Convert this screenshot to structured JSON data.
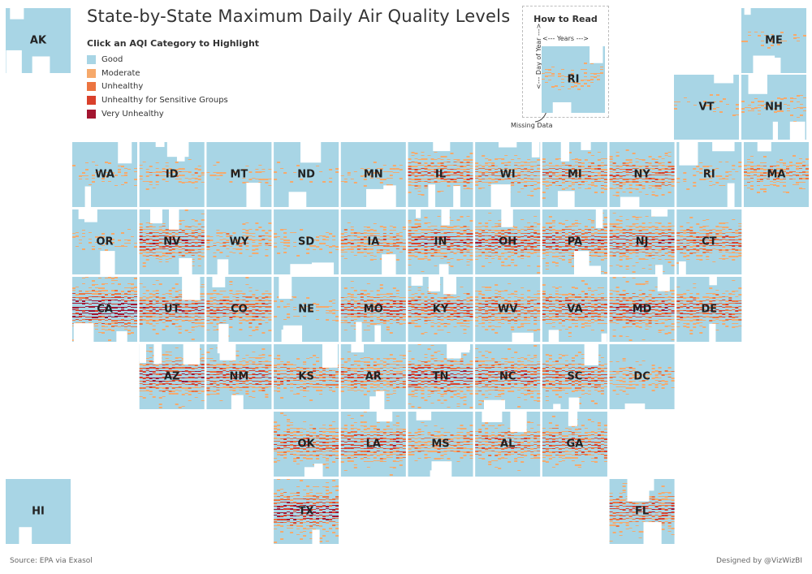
{
  "title": "State-by-State Maximum Daily Air Quality Levels",
  "legend": {
    "heading": "Click an AQI Category to Highlight",
    "items": [
      {
        "key": "good",
        "label": "Good",
        "color": "#a8d5e5"
      },
      {
        "key": "moderate",
        "label": "Moderate",
        "color": "#f6a96b"
      },
      {
        "key": "unhealthy",
        "label": "Unhealthy",
        "color": "#ec7440"
      },
      {
        "key": "usg",
        "label": "Unhealthy for Sensitive Groups",
        "color": "#d9402b"
      },
      {
        "key": "very_unhealthy",
        "label": "Very Unhealthy",
        "color": "#a31530"
      }
    ]
  },
  "how_to_read": {
    "title": "How to Read",
    "x_axis": "<--- Years --->",
    "y_axis": "<--- Day of Year --->",
    "example_state": "RI",
    "missing_label": "Missing Data"
  },
  "footer": {
    "source": "Source: EPA via Exasol",
    "credit": "Designed by @VizWizBI"
  },
  "chart_data": {
    "type": "heatmap",
    "title": "State-by-State Maximum Daily Air Quality Levels",
    "layout": "tile-grid map",
    "x_axis": "Years",
    "y_axis": "Day of Year",
    "categories": [
      "Good",
      "Moderate",
      "Unhealthy",
      "Unhealthy for Sensitive Groups",
      "Very Unhealthy"
    ],
    "states": [
      {
        "abbr": "AK",
        "col": -1,
        "row": -2,
        "intensity": 0.02
      },
      {
        "abbr": "ME",
        "col": 10,
        "row": -2,
        "intensity": 0.25
      },
      {
        "abbr": "VT",
        "col": 9,
        "row": -1,
        "intensity": 0.25
      },
      {
        "abbr": "NH",
        "col": 10,
        "row": -1,
        "intensity": 0.3
      },
      {
        "abbr": "WA",
        "col": 0,
        "row": 0,
        "intensity": 0.3
      },
      {
        "abbr": "ID",
        "col": 1,
        "row": 0,
        "intensity": 0.35
      },
      {
        "abbr": "MT",
        "col": 2,
        "row": 0,
        "intensity": 0.25
      },
      {
        "abbr": "ND",
        "col": 3,
        "row": 0,
        "intensity": 0.25
      },
      {
        "abbr": "MN",
        "col": 4,
        "row": 0,
        "intensity": 0.3
      },
      {
        "abbr": "IL",
        "col": 5,
        "row": 0,
        "intensity": 0.6
      },
      {
        "abbr": "WI",
        "col": 6,
        "row": 0,
        "intensity": 0.5
      },
      {
        "abbr": "MI",
        "col": 7,
        "row": 0,
        "intensity": 0.55
      },
      {
        "abbr": "NY",
        "col": 8,
        "row": 0,
        "intensity": 0.6
      },
      {
        "abbr": "RI",
        "col": 9,
        "row": 0,
        "intensity": 0.3
      },
      {
        "abbr": "MA",
        "col": 10,
        "row": 0,
        "intensity": 0.45
      },
      {
        "abbr": "OR",
        "col": 0,
        "row": 1,
        "intensity": 0.3
      },
      {
        "abbr": "NV",
        "col": 1,
        "row": 1,
        "intensity": 0.7
      },
      {
        "abbr": "WY",
        "col": 2,
        "row": 1,
        "intensity": 0.4
      },
      {
        "abbr": "SD",
        "col": 3,
        "row": 1,
        "intensity": 0.3
      },
      {
        "abbr": "IA",
        "col": 4,
        "row": 1,
        "intensity": 0.5
      },
      {
        "abbr": "IN",
        "col": 5,
        "row": 1,
        "intensity": 0.7
      },
      {
        "abbr": "OH",
        "col": 6,
        "row": 1,
        "intensity": 0.7
      },
      {
        "abbr": "PA",
        "col": 7,
        "row": 1,
        "intensity": 0.7
      },
      {
        "abbr": "NJ",
        "col": 8,
        "row": 1,
        "intensity": 0.7
      },
      {
        "abbr": "CT",
        "col": 9,
        "row": 1,
        "intensity": 0.6
      },
      {
        "abbr": "CA",
        "col": 0,
        "row": 2,
        "intensity": 0.95
      },
      {
        "abbr": "UT",
        "col": 1,
        "row": 2,
        "intensity": 0.7
      },
      {
        "abbr": "CO",
        "col": 2,
        "row": 2,
        "intensity": 0.65
      },
      {
        "abbr": "NE",
        "col": 3,
        "row": 2,
        "intensity": 0.3
      },
      {
        "abbr": "MO",
        "col": 4,
        "row": 2,
        "intensity": 0.65
      },
      {
        "abbr": "KY",
        "col": 5,
        "row": 2,
        "intensity": 0.65
      },
      {
        "abbr": "WV",
        "col": 6,
        "row": 2,
        "intensity": 0.6
      },
      {
        "abbr": "VA",
        "col": 7,
        "row": 2,
        "intensity": 0.65
      },
      {
        "abbr": "MD",
        "col": 8,
        "row": 2,
        "intensity": 0.75
      },
      {
        "abbr": "DE",
        "col": 9,
        "row": 2,
        "intensity": 0.65
      },
      {
        "abbr": "AZ",
        "col": 1,
        "row": 3,
        "intensity": 0.8
      },
      {
        "abbr": "NM",
        "col": 2,
        "row": 3,
        "intensity": 0.7
      },
      {
        "abbr": "KS",
        "col": 3,
        "row": 3,
        "intensity": 0.55
      },
      {
        "abbr": "AR",
        "col": 4,
        "row": 3,
        "intensity": 0.6
      },
      {
        "abbr": "TN",
        "col": 5,
        "row": 3,
        "intensity": 0.75
      },
      {
        "abbr": "NC",
        "col": 6,
        "row": 3,
        "intensity": 0.7
      },
      {
        "abbr": "SC",
        "col": 7,
        "row": 3,
        "intensity": 0.65
      },
      {
        "abbr": "DC",
        "col": 8,
        "row": 3,
        "intensity": 0.4
      },
      {
        "abbr": "OK",
        "col": 3,
        "row": 4,
        "intensity": 0.65
      },
      {
        "abbr": "LA",
        "col": 4,
        "row": 4,
        "intensity": 0.7
      },
      {
        "abbr": "MS",
        "col": 5,
        "row": 4,
        "intensity": 0.5
      },
      {
        "abbr": "AL",
        "col": 6,
        "row": 4,
        "intensity": 0.6
      },
      {
        "abbr": "GA",
        "col": 7,
        "row": 4,
        "intensity": 0.65
      },
      {
        "abbr": "HI",
        "col": -1,
        "row": 5,
        "intensity": 0.02
      },
      {
        "abbr": "TX",
        "col": 3,
        "row": 5,
        "intensity": 0.85
      },
      {
        "abbr": "FL",
        "col": 8,
        "row": 5,
        "intensity": 0.7
      }
    ]
  }
}
